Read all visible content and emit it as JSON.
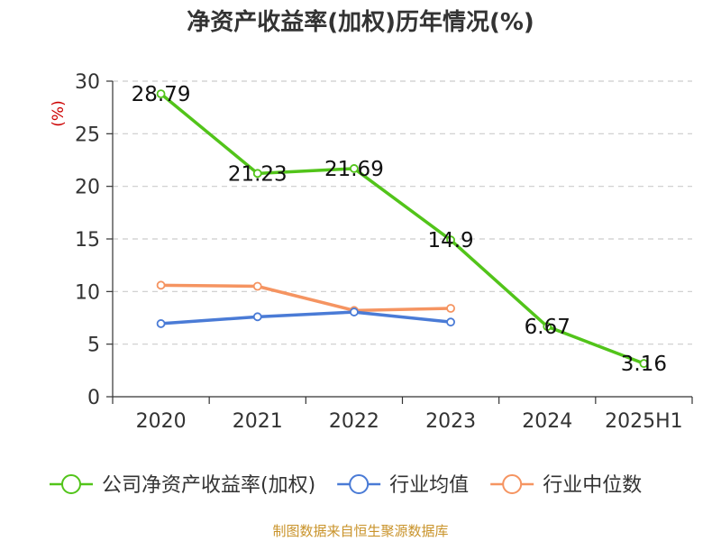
{
  "chart_data": {
    "type": "line",
    "title": "净资产收益率(加权)历年情况(%)",
    "ylabel": "(%)",
    "xlabel": "",
    "categories": [
      "2020",
      "2021",
      "2022",
      "2023",
      "2024",
      "2025H1"
    ],
    "ylim": [
      0,
      30
    ],
    "yticks": [
      0,
      5,
      10,
      15,
      20,
      25,
      30
    ],
    "grid": true,
    "legend_position": "bottom",
    "series": [
      {
        "name": "公司净资产收益率(加权)",
        "color": "#52c41a",
        "values": [
          28.79,
          21.23,
          21.69,
          14.9,
          6.67,
          3.16
        ],
        "labels": [
          "28.79",
          "21.23",
          "21.69",
          "14.9",
          "6.67",
          "3.16"
        ],
        "show_labels": true
      },
      {
        "name": "行业均值",
        "color": "#4a7bd6",
        "values": [
          6.95,
          7.6,
          8.05,
          7.1,
          null,
          null
        ],
        "show_labels": false
      },
      {
        "name": "行业中位数",
        "color": "#f59461",
        "values": [
          10.6,
          10.5,
          8.2,
          8.4,
          null,
          null
        ],
        "show_labels": false
      }
    ]
  },
  "footer": "制图数据来自恒生聚源数据库",
  "colors": {
    "title": "#333333",
    "ylabel": "#cc0000",
    "footer": "#c9932a",
    "grid": "#cccccc"
  }
}
